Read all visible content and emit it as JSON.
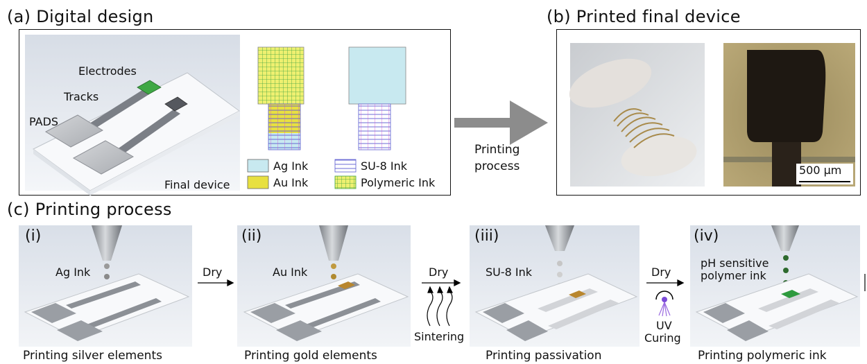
{
  "panel_a": {
    "title": "(a) Digital design",
    "labels": {
      "electrodes": "Electrodes",
      "tracks": "Tracks",
      "pads": "PADS",
      "final_device": "Final device"
    },
    "legend": [
      {
        "label": "Ag Ink",
        "color": "#c8e9f0"
      },
      {
        "label": "SU-8 Ink",
        "color": "#5a5ad0"
      },
      {
        "label": "Au Ink",
        "color": "#e8e040"
      },
      {
        "label": "Polymeric Ink",
        "color": "#3aa040"
      }
    ]
  },
  "middle_arrow": {
    "label_line1": "Printing",
    "label_line2": "process"
  },
  "panel_b": {
    "title": "(b) Printed final device",
    "scale_bar": "500 μm"
  },
  "panel_c": {
    "title": "(c) Printing process",
    "steps": [
      {
        "num": "(i)",
        "ink": "Ag Ink",
        "caption": "Printing silver elements"
      },
      {
        "num": "(ii)",
        "ink": "Au Ink",
        "caption": "Printing gold elements"
      },
      {
        "num": "(iii)",
        "ink": "SU-8 Ink",
        "caption": "Printing passivation"
      },
      {
        "num": "(iv)",
        "ink_line1": "pH sensitive",
        "ink_line2": "polymer ink",
        "caption": "Printing polymeric ink"
      }
    ],
    "transitions": [
      {
        "label": "Dry"
      },
      {
        "label": "Dry",
        "sub": "Sintering"
      },
      {
        "label": "Dry",
        "sub_line1": "UV",
        "sub_line2": "Curing"
      }
    ]
  }
}
